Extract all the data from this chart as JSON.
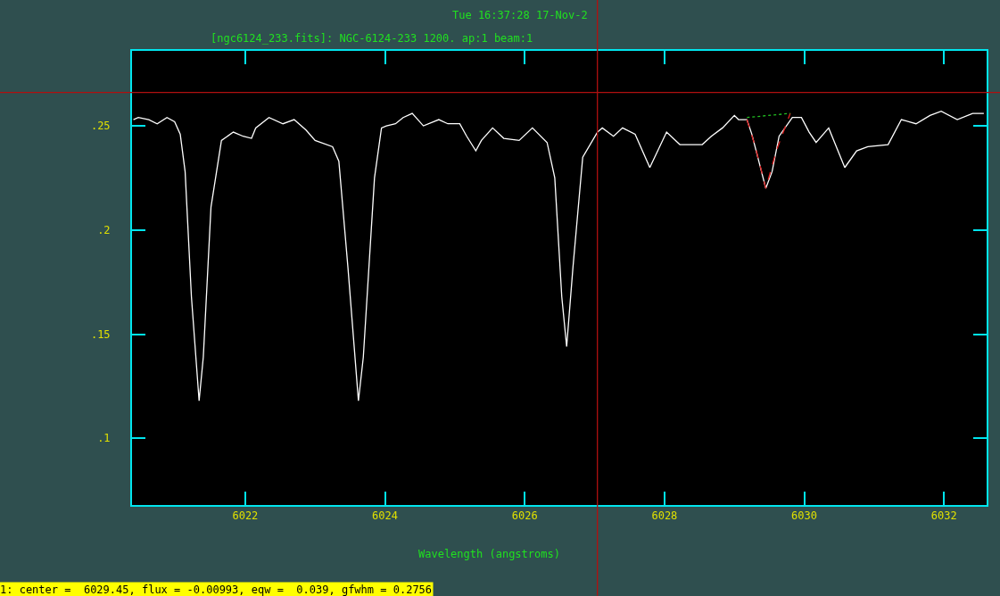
{
  "chart_data": {
    "type": "line",
    "title": "Tue 16:37:28 17-Nov-2",
    "subtitle": "[ngc6124_233.fits]: NGC-6124-233 1200. ap:1 beam:1",
    "xlabel": "Wavelength (angstroms)",
    "xlim": [
      6020.38,
      6032.61
    ],
    "ylim": [
      0.068,
      0.286
    ],
    "xticks": [
      6022,
      6024,
      6026,
      6028,
      6030,
      6032
    ],
    "yticks": [
      {
        "value": 0.1,
        "label": ".1"
      },
      {
        "value": 0.15,
        "label": ".15"
      },
      {
        "value": 0.2,
        "label": ".2"
      },
      {
        "value": 0.25,
        "label": ".25"
      }
    ],
    "grid": false,
    "series": [
      {
        "color": "#ffffff",
        "line_style": "solid",
        "x": [
          6020.4,
          6020.47,
          6020.62,
          6020.74,
          6020.88,
          6020.99,
          6021.07,
          6021.14,
          6021.23,
          6021.34,
          6021.4,
          6021.51,
          6021.66,
          6021.83,
          6021.97,
          6022.09,
          6022.15,
          6022.34,
          6022.54,
          6022.7,
          6022.87,
          6023.0,
          6023.25,
          6023.34,
          6023.47,
          6023.62,
          6023.69,
          6023.85,
          6023.95,
          6024.02,
          6024.15,
          6024.26,
          6024.39,
          6024.55,
          6024.77,
          6024.9,
          6025.07,
          6025.17,
          6025.3,
          6025.38,
          6025.54,
          6025.7,
          6025.92,
          6026.11,
          6026.32,
          6026.43,
          6026.53,
          6026.6,
          6026.69,
          6026.83,
          6027.04,
          6027.11,
          6027.27,
          6027.4,
          6027.58,
          6027.79,
          6028.03,
          6028.22,
          6028.41,
          6028.54,
          6028.67,
          6028.83,
          6029.0,
          6029.06,
          6029.18,
          6029.25,
          6029.45,
          6029.54,
          6029.64,
          6029.83,
          6029.96,
          6030.07,
          6030.17,
          6030.35,
          6030.58,
          6030.75,
          6030.91,
          6031.2,
          6031.39,
          6031.6,
          6031.8,
          6031.96,
          6032.19,
          6032.41,
          6032.57
        ],
        "values": [
          0.253,
          0.254,
          0.253,
          0.251,
          0.254,
          0.252,
          0.246,
          0.228,
          0.168,
          0.118,
          0.139,
          0.211,
          0.243,
          0.247,
          0.245,
          0.244,
          0.249,
          0.254,
          0.251,
          0.253,
          0.248,
          0.243,
          0.24,
          0.233,
          0.182,
          0.118,
          0.139,
          0.225,
          0.249,
          0.25,
          0.251,
          0.254,
          0.256,
          0.25,
          0.253,
          0.251,
          0.251,
          0.245,
          0.238,
          0.243,
          0.249,
          0.244,
          0.243,
          0.249,
          0.242,
          0.225,
          0.168,
          0.144,
          0.182,
          0.235,
          0.247,
          0.249,
          0.245,
          0.249,
          0.246,
          0.23,
          0.247,
          0.241,
          0.241,
          0.241,
          0.245,
          0.249,
          0.255,
          0.253,
          0.253,
          0.246,
          0.22,
          0.228,
          0.245,
          0.254,
          0.254,
          0.247,
          0.242,
          0.249,
          0.23,
          0.238,
          0.24,
          0.241,
          0.253,
          0.251,
          0.255,
          0.257,
          0.253,
          0.256,
          0.256
        ]
      },
      {
        "color": "#e02020",
        "line_style": "dashed",
        "x": [
          6029.18,
          6029.3,
          6029.45,
          6029.6,
          6029.8
        ],
        "values": [
          0.253,
          0.24,
          0.22,
          0.238,
          0.256
        ]
      },
      {
        "color": "#22c022",
        "line_style": "dotted",
        "x": [
          6029.18,
          6029.8
        ],
        "values": [
          0.254,
          0.256
        ]
      }
    ],
    "ref_lines": [
      {
        "axis": "x",
        "value": 6027.04,
        "color": "#b01010"
      },
      {
        "axis": "y",
        "value": 0.266,
        "color": "#b01010"
      }
    ],
    "annotations": [
      "1: center =  6029.45, flux = -0.00993, eqw =  0.039, gfwhm = 0.2756"
    ]
  }
}
